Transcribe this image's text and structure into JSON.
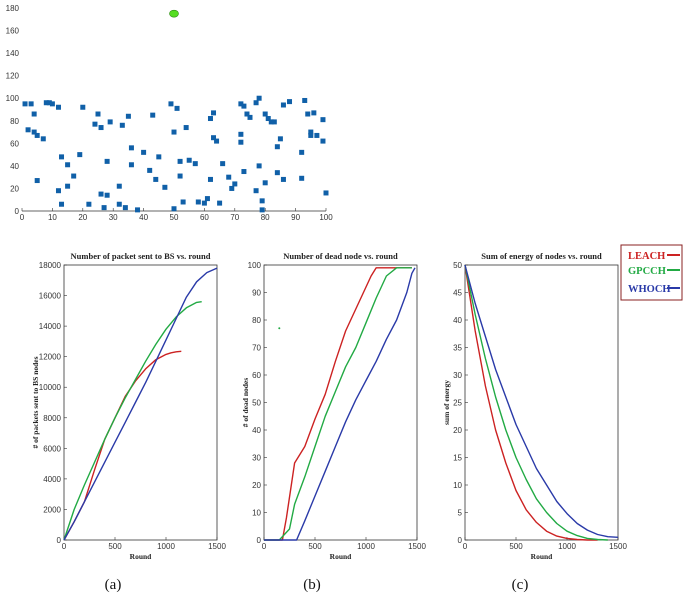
{
  "chart_data": [
    {
      "type": "scatter",
      "name": "top",
      "title": "",
      "xlabel": "",
      "ylabel": "",
      "xlim": [
        0,
        100
      ],
      "ylim": [
        0,
        180
      ],
      "xticks": [
        "0",
        "10",
        "20",
        "30",
        "40",
        "50",
        "60",
        "70",
        "80",
        "90",
        "100"
      ],
      "yticks": [
        "0",
        "20",
        "40",
        "60",
        "80",
        "100",
        "120",
        "140",
        "160",
        "180"
      ],
      "base_station": {
        "x": 50,
        "y": 175,
        "color": "#55dd22"
      },
      "marker_color": "#1060a8",
      "points": [
        [
          1,
          95
        ],
        [
          2,
          72
        ],
        [
          3,
          95
        ],
        [
          4,
          86
        ],
        [
          4,
          70
        ],
        [
          5,
          67
        ],
        [
          5,
          27
        ],
        [
          7,
          64
        ],
        [
          8,
          96
        ],
        [
          9,
          96
        ],
        [
          10,
          95
        ],
        [
          12,
          92
        ],
        [
          12,
          18
        ],
        [
          13,
          6
        ],
        [
          13,
          48
        ],
        [
          15,
          41
        ],
        [
          15,
          22
        ],
        [
          17,
          31
        ],
        [
          19,
          50
        ],
        [
          20,
          92
        ],
        [
          22,
          6
        ],
        [
          24,
          77
        ],
        [
          25,
          86
        ],
        [
          26,
          15
        ],
        [
          26,
          74
        ],
        [
          27,
          3
        ],
        [
          28,
          44
        ],
        [
          28,
          14
        ],
        [
          29,
          79
        ],
        [
          32,
          22
        ],
        [
          32,
          6
        ],
        [
          33,
          76
        ],
        [
          34,
          3
        ],
        [
          35,
          84
        ],
        [
          36,
          41
        ],
        [
          36,
          56
        ],
        [
          38,
          1
        ],
        [
          40,
          52
        ],
        [
          42,
          36
        ],
        [
          43,
          85
        ],
        [
          44,
          28
        ],
        [
          45,
          48
        ],
        [
          47,
          21
        ],
        [
          49,
          95
        ],
        [
          50,
          2
        ],
        [
          50,
          70
        ],
        [
          51,
          91
        ],
        [
          52,
          44
        ],
        [
          52,
          31
        ],
        [
          53,
          8
        ],
        [
          54,
          74
        ],
        [
          55,
          45
        ],
        [
          57,
          42
        ],
        [
          58,
          8
        ],
        [
          60,
          7
        ],
        [
          61,
          11
        ],
        [
          62,
          82
        ],
        [
          62,
          28
        ],
        [
          63,
          65
        ],
        [
          63,
          87
        ],
        [
          64,
          62
        ],
        [
          65,
          7
        ],
        [
          66,
          42
        ],
        [
          68,
          30
        ],
        [
          69,
          20
        ],
        [
          70,
          24
        ],
        [
          72,
          61
        ],
        [
          72,
          68
        ],
        [
          72,
          95
        ],
        [
          73,
          93
        ],
        [
          73,
          35
        ],
        [
          74,
          86
        ],
        [
          75,
          83
        ],
        [
          77,
          18
        ],
        [
          77,
          96
        ],
        [
          78,
          40
        ],
        [
          78,
          100
        ],
        [
          79,
          9
        ],
        [
          79,
          1
        ],
        [
          80,
          86
        ],
        [
          80,
          25
        ],
        [
          81,
          82
        ],
        [
          82,
          79
        ],
        [
          83,
          79
        ],
        [
          84,
          57
        ],
        [
          84,
          34
        ],
        [
          85,
          64
        ],
        [
          86,
          94
        ],
        [
          86,
          28
        ],
        [
          88,
          97
        ],
        [
          92,
          52
        ],
        [
          92,
          29
        ],
        [
          93,
          98
        ],
        [
          94,
          86
        ],
        [
          95,
          70
        ],
        [
          95,
          67
        ],
        [
          96,
          87
        ],
        [
          97,
          67
        ],
        [
          99,
          81
        ],
        [
          99,
          62
        ],
        [
          100,
          16
        ]
      ]
    },
    {
      "type": "line",
      "name": "packets",
      "title": "Number of packet sent to BS vs. round",
      "xlabel": "Round",
      "ylabel": "# of packets sent to BS nodes",
      "xlim": [
        0,
        1500
      ],
      "ylim": [
        0,
        18000
      ],
      "xticks": [
        "0",
        "500",
        "1000",
        "1500"
      ],
      "yticks": [
        "0",
        "2000",
        "4000",
        "6000",
        "8000",
        "10000",
        "12000",
        "14000",
        "16000",
        "18000"
      ],
      "series": [
        {
          "name": "LEACH",
          "color": "#cc2222",
          "x": [
            0,
            100,
            200,
            300,
            400,
            500,
            600,
            700,
            800,
            900,
            1000,
            1050,
            1100,
            1150
          ],
          "y": [
            0,
            1200,
            2500,
            4600,
            6600,
            8000,
            9400,
            10400,
            11200,
            11800,
            12150,
            12250,
            12320,
            12350
          ]
        },
        {
          "name": "GPCCH",
          "color": "#22aa44",
          "x": [
            0,
            100,
            200,
            300,
            400,
            500,
            600,
            700,
            800,
            900,
            1000,
            1100,
            1200,
            1300,
            1350
          ],
          "y": [
            0,
            2000,
            3600,
            5100,
            6600,
            8000,
            9300,
            10500,
            11700,
            12800,
            13800,
            14600,
            15200,
            15550,
            15600
          ]
        },
        {
          "name": "WHOCH",
          "color": "#2a3aa8",
          "x": [
            0,
            100,
            200,
            300,
            400,
            500,
            600,
            700,
            800,
            900,
            1000,
            1100,
            1200,
            1300,
            1400,
            1500
          ],
          "y": [
            0,
            1200,
            2500,
            3800,
            5100,
            6400,
            7700,
            9000,
            10300,
            11700,
            13100,
            14500,
            15900,
            16900,
            17500,
            17800
          ]
        }
      ]
    },
    {
      "type": "line",
      "name": "dead",
      "title": "Number of dead node vs. round",
      "xlabel": "Round",
      "ylabel": "# of dead nodes",
      "xlim": [
        0,
        1500
      ],
      "ylim": [
        0,
        100
      ],
      "xticks": [
        "0",
        "500",
        "1000",
        "1500"
      ],
      "yticks": [
        "0",
        "10",
        "20",
        "30",
        "40",
        "50",
        "60",
        "70",
        "80",
        "90",
        "100"
      ],
      "outlier": {
        "x": 150,
        "y": 77,
        "color": "#22aa44"
      },
      "series": [
        {
          "name": "LEACH",
          "color": "#cc2222",
          "x": [
            0,
            180,
            220,
            300,
            400,
            500,
            600,
            700,
            800,
            900,
            1000,
            1050,
            1100,
            1200,
            1300,
            1400,
            1450
          ],
          "y": [
            0,
            0,
            8,
            28,
            34,
            44,
            53,
            65,
            76,
            84,
            92,
            96,
            99,
            99,
            99,
            99,
            99
          ]
        },
        {
          "name": "GPCCH",
          "color": "#22aa44",
          "x": [
            0,
            150,
            250,
            300,
            400,
            500,
            600,
            700,
            800,
            900,
            1000,
            1100,
            1200,
            1300,
            1400,
            1450
          ],
          "y": [
            0,
            0,
            4,
            13,
            23,
            34,
            45,
            54,
            63,
            70,
            79,
            88,
            96,
            99,
            99,
            99
          ]
        },
        {
          "name": "WHOCH",
          "color": "#2a3aa8",
          "x": [
            0,
            320,
            400,
            500,
            600,
            700,
            800,
            900,
            1000,
            1100,
            1200,
            1300,
            1400,
            1450,
            1480
          ],
          "y": [
            0,
            0,
            7,
            16,
            25,
            34,
            43,
            51,
            58,
            65,
            73,
            80,
            90,
            97,
            99
          ]
        }
      ]
    },
    {
      "type": "line",
      "name": "energy",
      "title": "Sum of energy of nodes vs. round",
      "xlabel": "Round",
      "ylabel": "sum of energy",
      "xlim": [
        0,
        1500
      ],
      "ylim": [
        0,
        50
      ],
      "xticks": [
        "0",
        "500",
        "1000",
        "1500"
      ],
      "yticks": [
        "0",
        "5",
        "10",
        "15",
        "20",
        "25",
        "30",
        "35",
        "40",
        "45",
        "50"
      ],
      "series": [
        {
          "name": "LEACH",
          "color": "#cc2222",
          "x": [
            0,
            100,
            200,
            300,
            400,
            500,
            600,
            700,
            800,
            900,
            1000,
            1100,
            1200,
            1300
          ],
          "y": [
            50,
            38,
            28,
            20,
            14,
            9,
            5.5,
            3.2,
            1.6,
            0.7,
            0.3,
            0.1,
            0,
            0
          ]
        },
        {
          "name": "GPCCH",
          "color": "#22aa44",
          "x": [
            0,
            100,
            200,
            300,
            400,
            500,
            600,
            700,
            800,
            900,
            1000,
            1100,
            1200,
            1300,
            1400
          ],
          "y": [
            50,
            41,
            33,
            26,
            20,
            15,
            11,
            7.5,
            5,
            3,
            1.6,
            0.8,
            0.3,
            0.1,
            0
          ]
        },
        {
          "name": "WHOCH",
          "color": "#2a3aa8",
          "x": [
            0,
            100,
            200,
            300,
            400,
            500,
            600,
            700,
            800,
            900,
            1000,
            1100,
            1200,
            1300,
            1400,
            1500
          ],
          "y": [
            50,
            43,
            37,
            31,
            26,
            21,
            17,
            13,
            10,
            7,
            4.8,
            3,
            1.8,
            1,
            0.6,
            0.5
          ]
        }
      ]
    }
  ],
  "legend": [
    {
      "label": "LEACH",
      "color": "#cc2222"
    },
    {
      "label": "GPCCH",
      "color": "#22aa44"
    },
    {
      "label": "WHOCH",
      "color": "#2a3aa8"
    }
  ],
  "captions": [
    "(a)",
    "(b)",
    "(c)"
  ]
}
